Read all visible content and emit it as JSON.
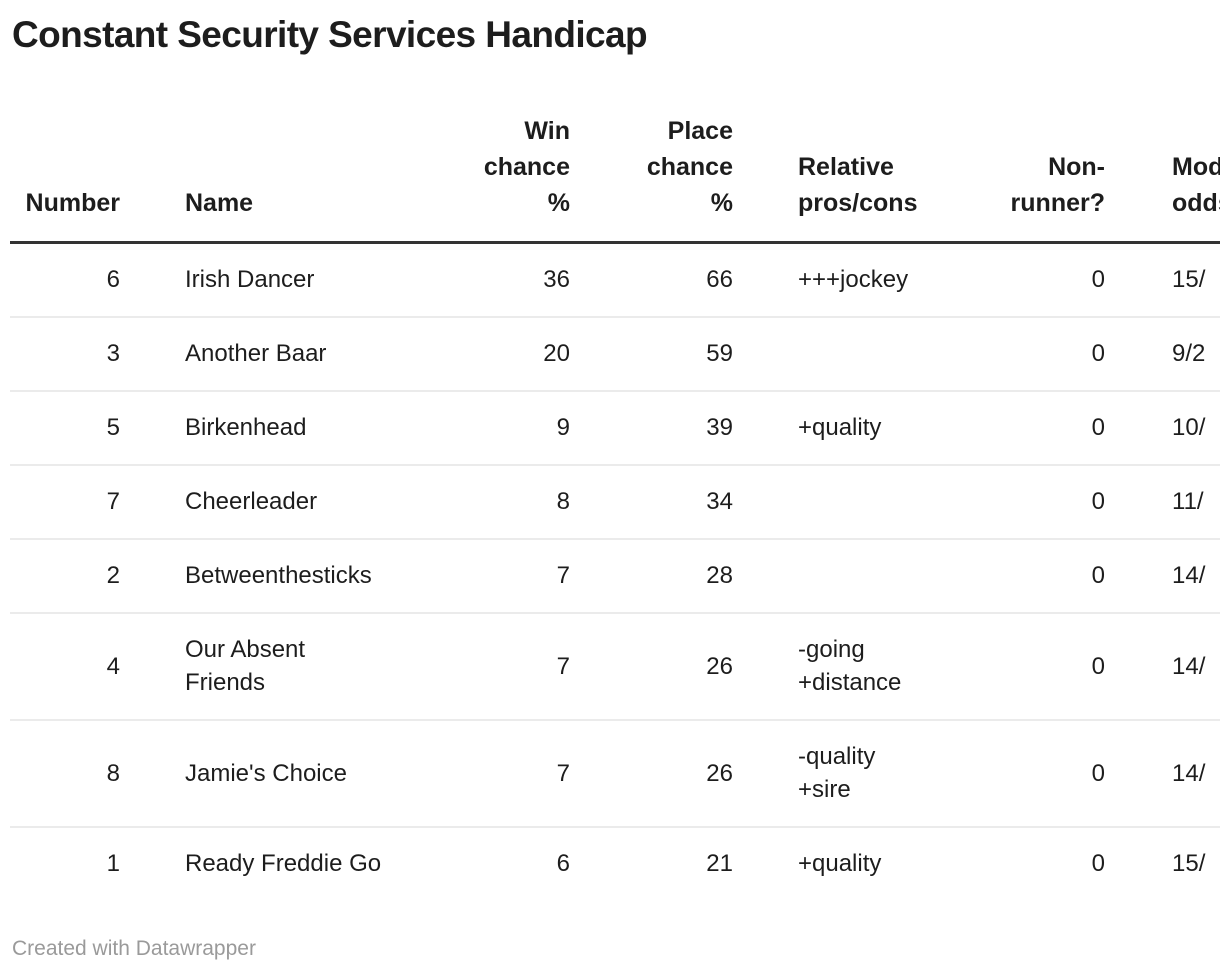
{
  "attribution": "Created with Datawrapper",
  "colors": {
    "text": "#1d1d1d",
    "header_rule": "#333333",
    "row_divider": "#ebebeb",
    "muted": "#9a9a9a",
    "background": "#ffffff"
  },
  "chart_data": {
    "type": "table",
    "title": "Constant Security Services Handicap",
    "columns": [
      {
        "id": "number",
        "label": "Number",
        "align": "right"
      },
      {
        "id": "name",
        "label": "Name",
        "align": "left"
      },
      {
        "id": "win-chance",
        "label": "Win\nchance\n%",
        "align": "right"
      },
      {
        "id": "place-chance",
        "label": "Place\nchance\n%",
        "align": "right"
      },
      {
        "id": "pros-cons",
        "label": "Relative\npros/cons",
        "align": "left"
      },
      {
        "id": "non-runner",
        "label": "Non-\nrunner?",
        "align": "right"
      },
      {
        "id": "model-odds",
        "label": "Model\nodds",
        "align": "left"
      }
    ],
    "rows": [
      [
        6,
        "Irish Dancer",
        36,
        66,
        "+++jockey",
        0,
        "15/"
      ],
      [
        3,
        "Another Baar",
        20,
        59,
        "",
        0,
        "9/2"
      ],
      [
        5,
        "Birkenhead",
        9,
        39,
        "+quality",
        0,
        "10/"
      ],
      [
        7,
        "Cheerleader",
        8,
        34,
        "",
        0,
        "11/"
      ],
      [
        2,
        "Betweenthesticks",
        7,
        28,
        "",
        0,
        "14/"
      ],
      [
        4,
        "Our Absent\nFriends",
        7,
        26,
        "-going\n+distance",
        0,
        "14/"
      ],
      [
        8,
        "Jamie's Choice",
        7,
        26,
        "-quality\n+sire",
        0,
        "14/"
      ],
      [
        1,
        "Ready Freddie Go",
        6,
        21,
        "+quality",
        0,
        "15/"
      ]
    ]
  }
}
